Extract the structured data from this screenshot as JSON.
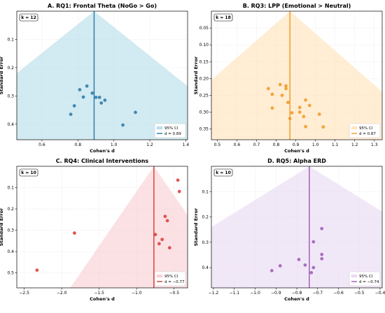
{
  "chart_data": [
    {
      "type": "scatter",
      "subtype": "funnel",
      "title": "A. RQ1: Frontal Theta (NoGo > Go)",
      "xlabel": "Cohen's d",
      "ylabel": "Standard Error",
      "xlim": [
        0.46,
        1.41
      ],
      "ylim": [
        0.455,
        0.0
      ],
      "xticks": [
        0.6,
        0.8,
        1.0,
        1.2,
        1.4
      ],
      "yticks": [
        0.1,
        0.2,
        0.3,
        0.4
      ],
      "xtick_labels": [
        "0.6",
        "0.8",
        "1.0",
        "1.2",
        "1.4"
      ],
      "ytick_labels": [
        "0.1",
        "0.2",
        "0.3",
        "0.4"
      ],
      "k_label": "k = 12",
      "pooled_d": 0.89,
      "color": "#2878a8",
      "fill": "#add8e6",
      "legend": {
        "ci_label": "95% CI",
        "line_label": "d = 0.89",
        "position": "bottom-right"
      },
      "points": [
        {
          "d": 0.76,
          "se": 0.365
        },
        {
          "d": 0.78,
          "se": 0.335
        },
        {
          "d": 0.81,
          "se": 0.278
        },
        {
          "d": 0.83,
          "se": 0.304
        },
        {
          "d": 0.85,
          "se": 0.265
        },
        {
          "d": 0.88,
          "se": 0.29
        },
        {
          "d": 0.9,
          "se": 0.305
        },
        {
          "d": 0.92,
          "se": 0.305
        },
        {
          "d": 0.93,
          "se": 0.325
        },
        {
          "d": 0.95,
          "se": 0.315
        },
        {
          "d": 1.05,
          "se": 0.403
        },
        {
          "d": 1.12,
          "se": 0.358
        }
      ]
    },
    {
      "type": "scatter",
      "subtype": "funnel",
      "title": "B. RQ3: LPP (Emotional > Neutral)",
      "xlabel": "Cohen's d",
      "ylabel": "Standard Error",
      "xlim": [
        0.47,
        1.34
      ],
      "ylim": [
        0.382,
        0.0
      ],
      "xticks": [
        0.5,
        0.6,
        0.7,
        0.8,
        0.9,
        1.0,
        1.1,
        1.2,
        1.3
      ],
      "yticks": [
        0.05,
        0.1,
        0.15,
        0.2,
        0.25,
        0.3,
        0.35
      ],
      "xtick_labels": [
        "0.5",
        "0.6",
        "0.7",
        "0.8",
        "0.9",
        "1.0",
        "1.1",
        "1.2",
        "1.3"
      ],
      "ytick_labels": [
        "0.05",
        "0.10",
        "0.15",
        "0.20",
        "0.25",
        "0.30",
        "0.35"
      ],
      "k_label": "k = 18",
      "pooled_d": 0.87,
      "color": "#f0961e",
      "fill": "#ffdfb0",
      "legend": {
        "ci_label": "95% CI",
        "line_label": "d = 0.87",
        "position": "bottom-right"
      },
      "points": [
        {
          "d": 0.76,
          "se": 0.23
        },
        {
          "d": 0.78,
          "se": 0.247
        },
        {
          "d": 0.78,
          "se": 0.288
        },
        {
          "d": 0.82,
          "se": 0.218
        },
        {
          "d": 0.83,
          "se": 0.25
        },
        {
          "d": 0.85,
          "se": 0.222
        },
        {
          "d": 0.85,
          "se": 0.23
        },
        {
          "d": 0.86,
          "se": 0.271
        },
        {
          "d": 0.87,
          "se": 0.319
        },
        {
          "d": 0.88,
          "se": 0.302
        },
        {
          "d": 0.92,
          "se": 0.286
        },
        {
          "d": 0.92,
          "se": 0.3
        },
        {
          "d": 0.94,
          "se": 0.313
        },
        {
          "d": 0.95,
          "se": 0.264
        },
        {
          "d": 0.95,
          "se": 0.343
        },
        {
          "d": 0.97,
          "se": 0.28
        },
        {
          "d": 1.02,
          "se": 0.306
        },
        {
          "d": 1.04,
          "se": 0.344
        }
      ]
    },
    {
      "type": "scatter",
      "subtype": "funnel",
      "title": "C. RQ4: Clinical Interventions",
      "xlabel": "Cohen's d",
      "ylabel": "Standard Error",
      "xlim": [
        -2.6,
        -0.32
      ],
      "ylim": [
        0.57,
        0.0
      ],
      "xticks": [
        -2.5,
        -2.0,
        -1.5,
        -1.0,
        -0.5
      ],
      "yticks": [
        0.1,
        0.2,
        0.3,
        0.4,
        0.5
      ],
      "xtick_labels": [
        "−2.5",
        "−2.0",
        "−1.5",
        "−1.0",
        "−0.5"
      ],
      "ytick_labels": [
        "0.1",
        "0.2",
        "0.3",
        "0.4",
        "0.5"
      ],
      "k_label": "k = 10",
      "pooled_d": -0.77,
      "color": "#d93838",
      "fill": "#f8c8cc",
      "legend": {
        "ci_label": "95% CI",
        "line_label": "d = −0.77",
        "position": "bottom-right"
      },
      "points": [
        {
          "d": -2.33,
          "se": 0.487
        },
        {
          "d": -1.83,
          "se": 0.313
        },
        {
          "d": -0.75,
          "se": 0.32
        },
        {
          "d": -0.7,
          "se": 0.363
        },
        {
          "d": -0.66,
          "se": 0.343
        },
        {
          "d": -0.62,
          "se": 0.235
        },
        {
          "d": -0.59,
          "se": 0.255
        },
        {
          "d": -0.56,
          "se": 0.382
        },
        {
          "d": -0.45,
          "se": 0.065
        },
        {
          "d": -0.43,
          "se": 0.118
        }
      ]
    },
    {
      "type": "scatter",
      "subtype": "funnel",
      "title": "D. RQ5: Alpha ERD",
      "xlabel": "Cohen's d",
      "ylabel": "Standard Error",
      "xlim": [
        -1.21,
        -0.39
      ],
      "ylim": [
        0.48,
        0.0
      ],
      "xticks": [
        -1.2,
        -1.1,
        -1.0,
        -0.9,
        -0.8,
        -0.7,
        -0.6,
        -0.5,
        -0.4
      ],
      "yticks": [
        0.1,
        0.2,
        0.3,
        0.4
      ],
      "xtick_labels": [
        "−1.2",
        "−1.1",
        "−1.0",
        "−0.9",
        "−0.8",
        "−0.7",
        "−0.6",
        "−0.5",
        "−0.4"
      ],
      "ytick_labels": [
        "0.1",
        "0.2",
        "0.3",
        "0.4"
      ],
      "k_label": "k = 10",
      "pooled_d": -0.74,
      "color": "#9b59b6",
      "fill": "#e6d5f0",
      "legend": {
        "ci_label": "95% CI",
        "line_label": "d = −0.74",
        "position": "bottom-right"
      },
      "points": [
        {
          "d": -0.92,
          "se": 0.412
        },
        {
          "d": -0.88,
          "se": 0.393
        },
        {
          "d": -0.79,
          "se": 0.368
        },
        {
          "d": -0.76,
          "se": 0.39
        },
        {
          "d": -0.73,
          "se": 0.42
        },
        {
          "d": -0.72,
          "se": 0.298
        },
        {
          "d": -0.68,
          "se": 0.348
        },
        {
          "d": -0.68,
          "se": 0.365
        },
        {
          "d": -0.68,
          "se": 0.246
        },
        {
          "d": -0.72,
          "se": 0.4
        }
      ]
    }
  ]
}
